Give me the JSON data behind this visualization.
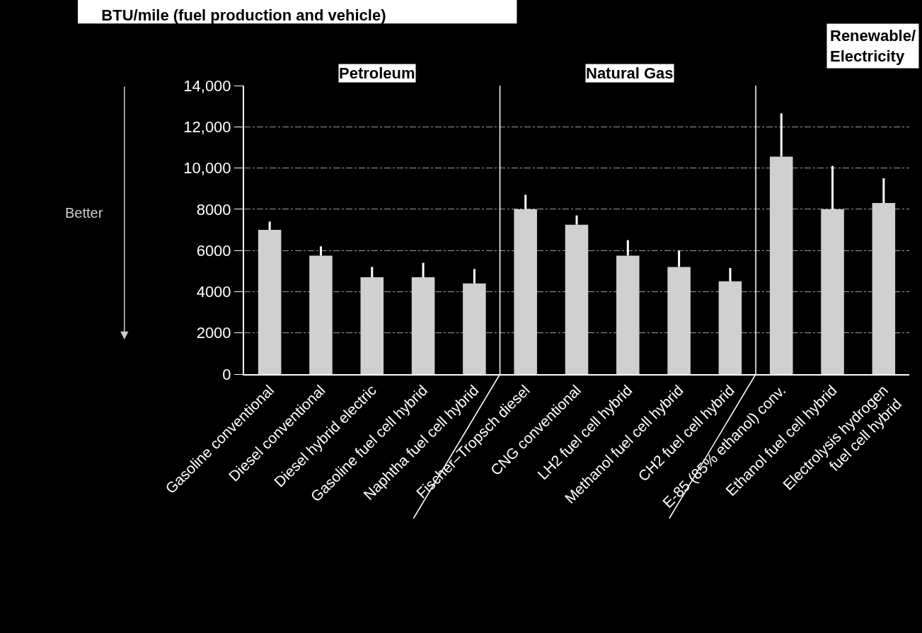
{
  "chart_data": {
    "type": "bar",
    "title": "BTU/mile (fuel production and vehicle)",
    "categories": [
      "Gasoline conventional",
      "Diesel conventional",
      "Diesel hybrid electric",
      "Gasoline fuel cell hybrid",
      "Naphtha fuel cell hybrid",
      "Fischer–Tropsch diesel",
      "CNG conventional",
      "LH2 fuel cell hybrid",
      "Methanol fuel cell hybrid",
      "CH2 fuel cell hybrid",
      "E-85 (85% ethanol) conv.",
      "Ethanol fuel cell hybrid",
      "Electrolysis hydrogen\nfuel cell hybrid"
    ],
    "values": [
      7000,
      5750,
      4700,
      4700,
      4400,
      8000,
      7250,
      5750,
      5200,
      4500,
      10550,
      8000,
      8300
    ],
    "errors": [
      [
        7000,
        7400
      ],
      [
        5750,
        6200
      ],
      [
        4700,
        5200
      ],
      [
        4700,
        5400
      ],
      [
        4400,
        5100
      ],
      [
        8000,
        8700
      ],
      [
        7250,
        7700
      ],
      [
        5750,
        6500
      ],
      [
        5200,
        6000
      ],
      [
        4500,
        5150
      ],
      [
        10550,
        12650
      ],
      [
        8000,
        10100
      ],
      [
        8300,
        9500
      ]
    ],
    "color": "#d0d0d0",
    "ylim": [
      0,
      14000
    ],
    "yticks": [
      0,
      2000,
      4000,
      6000,
      8000,
      {
        "value": 10000,
        "label": "10,000"
      },
      {
        "value": 12000,
        "label": "12,000"
      },
      {
        "value": 14000,
        "label": "14,000"
      }
    ],
    "grid": "y",
    "annotations": [
      "Petroleum",
      "Natural Gas",
      "Renewable/\nElectricity",
      "Better"
    ]
  }
}
